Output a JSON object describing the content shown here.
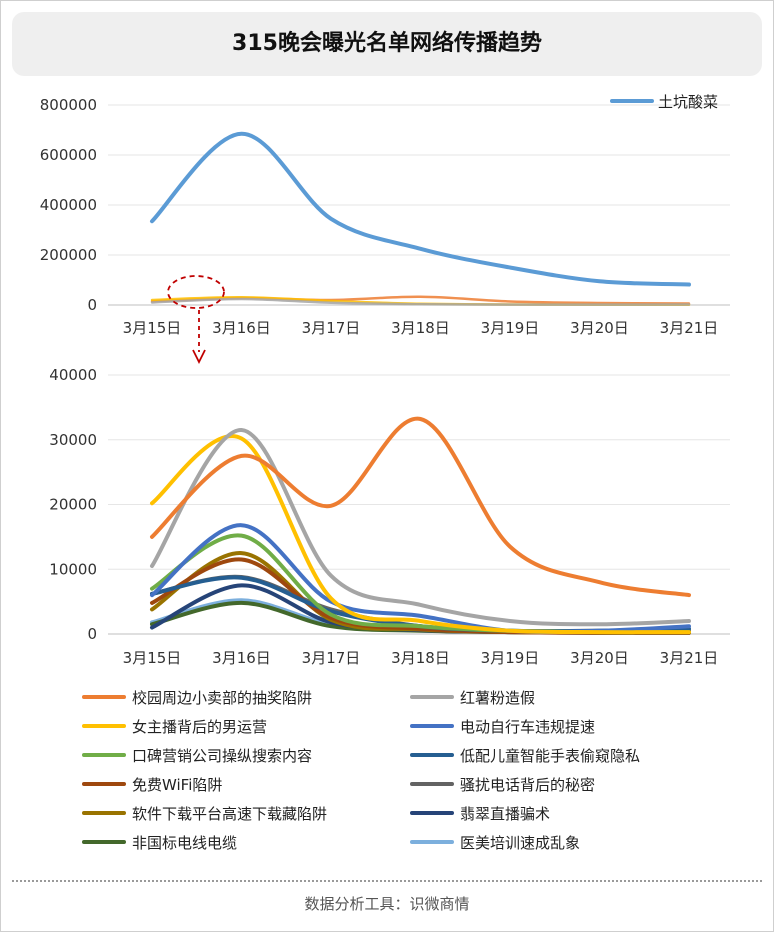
{
  "title": "315晚会曝光名单网络传播趋势",
  "footer": "数据分析工具：识微商情",
  "chart_data": [
    {
      "type": "line",
      "categories": [
        "3月15日",
        "3月16日",
        "3月17日",
        "3月18日",
        "3月19日",
        "3月20日",
        "3月21日"
      ],
      "ylim": [
        0,
        800000
      ],
      "yticks": [
        0,
        200000,
        400000,
        600000,
        800000
      ],
      "legend_position": "top-right",
      "series": [
        {
          "name": "土坑酸菜",
          "color": "#5b9bd5",
          "values": [
            335000,
            685000,
            345000,
            225000,
            150000,
            95000,
            82000
          ]
        }
      ],
      "faint_series_values": [
        [
          15000,
          28000,
          20000,
          33000,
          14000,
          8000,
          6000
        ],
        [
          20000,
          31000,
          16000,
          5000,
          2000,
          1000,
          1000
        ],
        [
          10000,
          24000,
          9000,
          3000,
          1500,
          1500,
          2000
        ]
      ],
      "faint_series_colors": [
        "#ed7d31",
        "#ffc000",
        "#a5a5a5"
      ]
    },
    {
      "type": "line",
      "categories": [
        "3月15日",
        "3月16日",
        "3月17日",
        "3月18日",
        "3月19日",
        "3月20日",
        "3月21日"
      ],
      "ylim": [
        0,
        40000
      ],
      "yticks": [
        0,
        10000,
        20000,
        30000,
        40000
      ],
      "legend_position": "bottom",
      "series": [
        {
          "name": "校园周边小卖部的抽奖陷阱",
          "color": "#ed7d31",
          "values": [
            15000,
            27500,
            19800,
            33200,
            13500,
            8000,
            6000
          ]
        },
        {
          "name": "红薯粉造假",
          "color": "#a5a5a5",
          "values": [
            10500,
            31500,
            9000,
            4500,
            2000,
            1500,
            2000
          ]
        },
        {
          "name": "女主播背后的男运营",
          "color": "#ffc000",
          "values": [
            20200,
            30200,
            5500,
            2000,
            500,
            300,
            300
          ]
        },
        {
          "name": "电动自行车违规提速",
          "color": "#4472c4",
          "values": [
            6000,
            16800,
            5000,
            2800,
            500,
            500,
            1200
          ]
        },
        {
          "name": "口碑营销公司操纵搜索内容",
          "color": "#70ad47",
          "values": [
            7000,
            15200,
            3000,
            1200,
            500,
            300,
            300
          ]
        },
        {
          "name": "低配儿童智能手表偷窥隐私",
          "color": "#255e91",
          "values": [
            6200,
            8700,
            3500,
            1200,
            500,
            500,
            800
          ]
        },
        {
          "name": "免费WiFi陷阱",
          "color": "#9e480e",
          "values": [
            4800,
            11500,
            2500,
            800,
            300,
            200,
            200
          ]
        },
        {
          "name": "骚扰电话背后的秘密",
          "color": "#636363",
          "values": [
            6200,
            8800,
            3800,
            1200,
            500,
            500,
            500
          ]
        },
        {
          "name": "软件下载平台高速下载藏陷阱",
          "color": "#997300",
          "values": [
            3800,
            12500,
            2200,
            700,
            300,
            200,
            200
          ]
        },
        {
          "name": "翡翠直播骗术",
          "color": "#264478",
          "values": [
            1000,
            7500,
            1800,
            600,
            300,
            200,
            200
          ]
        },
        {
          "name": "非国标电线电缆",
          "color": "#43682b",
          "values": [
            1500,
            4800,
            1200,
            500,
            300,
            200,
            200
          ]
        },
        {
          "name": "医美培训速成乱象",
          "color": "#7cafdd",
          "values": [
            1800,
            5200,
            1500,
            600,
            300,
            300,
            300
          ]
        }
      ]
    }
  ]
}
